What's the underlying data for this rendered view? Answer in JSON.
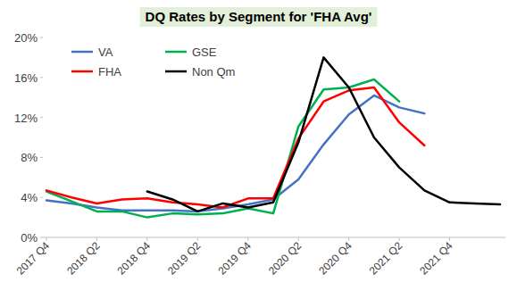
{
  "chart_data": {
    "type": "line",
    "title": "DQ Rates by Segment for 'FHA Avg'",
    "categories": [
      "2017 Q4",
      null,
      "2018 Q2",
      null,
      "2018 Q4",
      null,
      "2019 Q2",
      null,
      "2019 Q4",
      null,
      "2020 Q2",
      null,
      "2020 Q4",
      null,
      "2021 Q2",
      null,
      "2021 Q4",
      null,
      null
    ],
    "series": [
      {
        "name": "VA",
        "color": "#4472c4",
        "values": [
          3.7,
          3.4,
          3.0,
          2.7,
          2.7,
          2.7,
          2.6,
          2.9,
          3.3,
          3.8,
          5.8,
          9.3,
          12.3,
          14.2,
          13.0,
          12.4,
          null,
          null,
          null
        ]
      },
      {
        "name": "GSE",
        "color": "#00b050",
        "values": [
          4.6,
          3.6,
          2.6,
          2.6,
          2.0,
          2.4,
          2.3,
          2.4,
          2.9,
          2.4,
          11.1,
          14.8,
          15.0,
          15.8,
          13.6,
          null,
          null,
          null,
          null
        ]
      },
      {
        "name": "FHA",
        "color": "#ff0000",
        "values": [
          4.7,
          4.0,
          3.4,
          3.8,
          3.9,
          3.5,
          3.3,
          3.0,
          3.9,
          3.9,
          9.9,
          13.6,
          14.7,
          15.0,
          11.5,
          9.2,
          null,
          null,
          null
        ]
      },
      {
        "name": "Non Qm",
        "color": "#000000",
        "values": [
          null,
          null,
          null,
          null,
          4.6,
          3.8,
          2.6,
          3.4,
          3.0,
          3.5,
          9.5,
          18.0,
          15.0,
          10.0,
          7.0,
          4.7,
          3.5,
          3.4,
          3.3
        ]
      }
    ],
    "ylim": [
      0,
      20
    ],
    "yticks": [
      {
        "value": 0,
        "label": "0%"
      },
      {
        "value": 4,
        "label": "4%"
      },
      {
        "value": 8,
        "label": "8%"
      },
      {
        "value": 12,
        "label": "12%"
      },
      {
        "value": 16,
        "label": "16%"
      },
      {
        "value": 20,
        "label": "20%"
      }
    ],
    "grid": false,
    "legend": "top-left"
  }
}
